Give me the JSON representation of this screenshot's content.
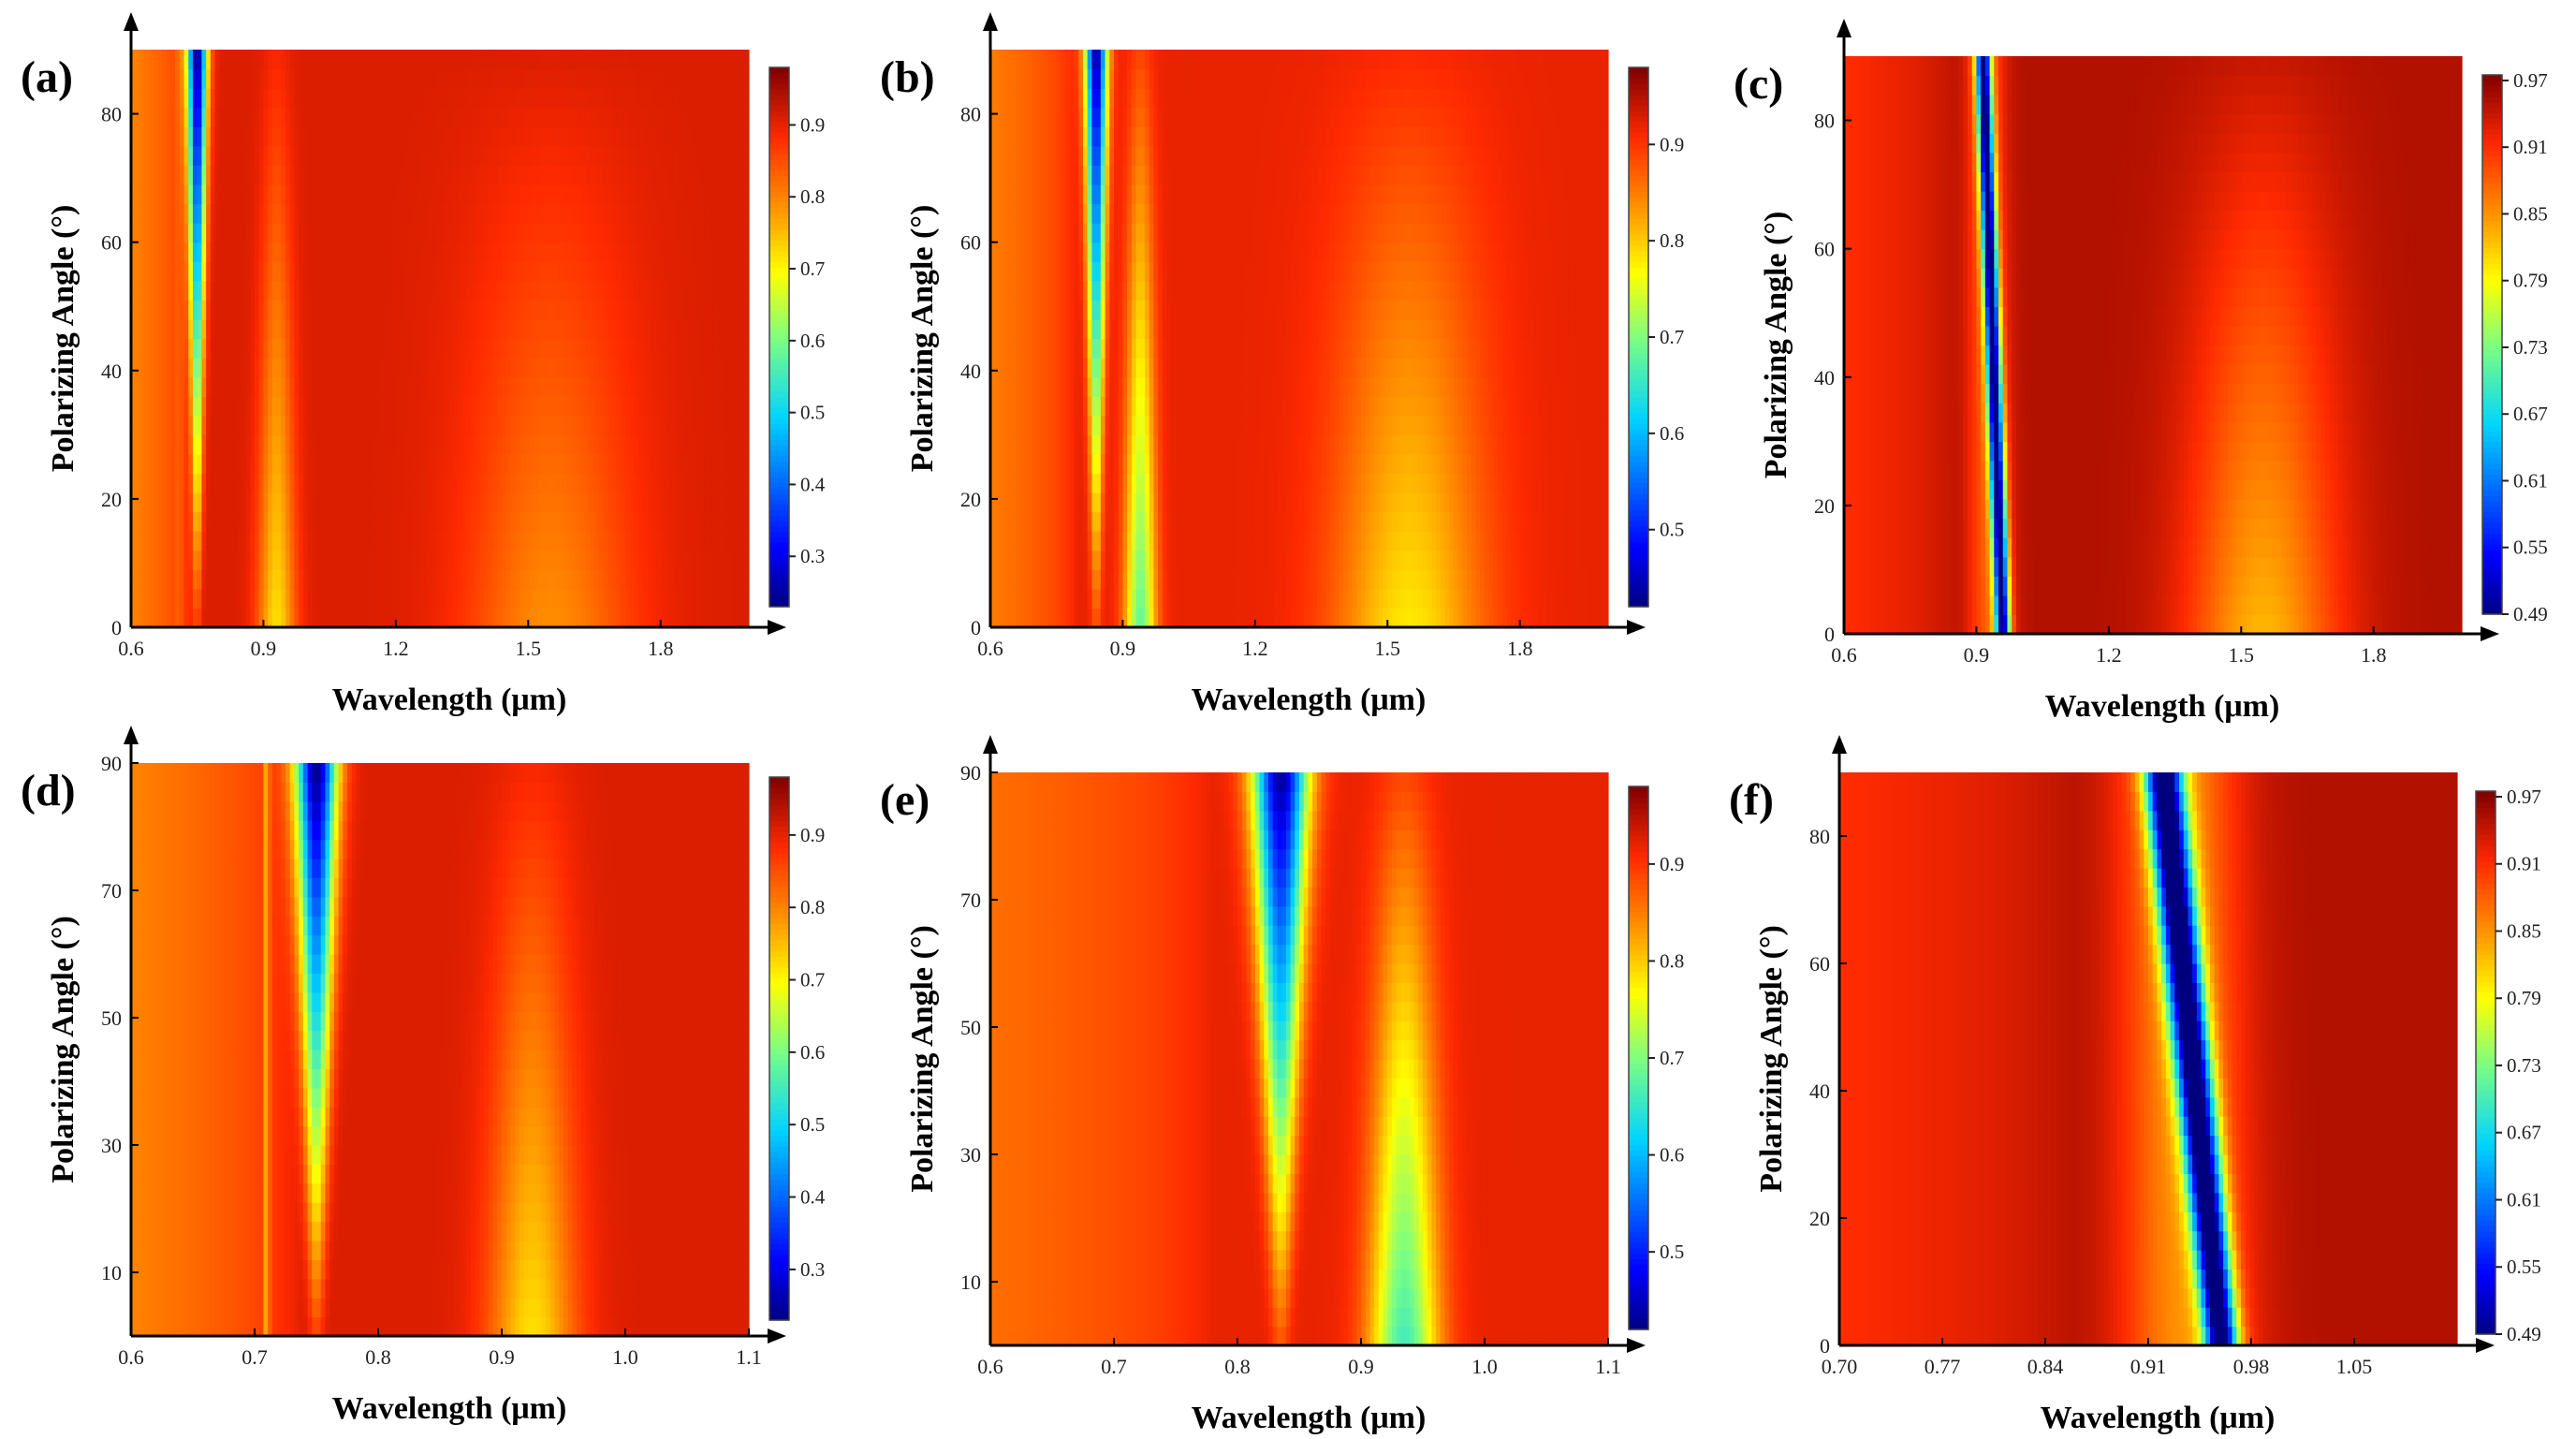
{
  "colors": {
    "colormap": [
      "#00007f",
      "#0000ff",
      "#00d4ff",
      "#7fff7f",
      "#ffff00",
      "#ff9400",
      "#ff2a00",
      "#7f0000"
    ],
    "axis": "#000000",
    "background": "#ffffff"
  },
  "chart_data": [
    {
      "type": "heatmap",
      "panel_label": "(a)",
      "xlabel": "Wavelength (μm)",
      "ylabel": "Polarizing Angle (°)",
      "xlim": [
        0.6,
        2.0
      ],
      "ylim": [
        0,
        90
      ],
      "xticks": [
        0.6,
        0.9,
        1.2,
        1.5,
        1.8
      ],
      "xtick_labels": [
        "0.6",
        "0.9",
        "1.2",
        "1.5",
        "1.8"
      ],
      "yticks": [
        0,
        20,
        40,
        60,
        80
      ],
      "ytick_labels": [
        "0",
        "20",
        "40",
        "60",
        "80"
      ],
      "colorbar_range": [
        0.23,
        0.98
      ],
      "colorbar_ticks": [
        0.3,
        0.4,
        0.5,
        0.6,
        0.7,
        0.8,
        0.9
      ],
      "colorbar_labels": [
        "0.3",
        "0.4",
        "0.5",
        "0.6",
        "0.7",
        "0.8",
        "0.9"
      ],
      "base_value": 0.91,
      "features": [
        {
          "kind": "lift",
          "wl_lo": 0.6,
          "wl_hi": 0.75,
          "amp": -0.11,
          "a0": -0.11,
          "a90": -0.11
        },
        {
          "kind": "dip",
          "wl0": 0.75,
          "wl90": 0.75,
          "w0": 0.006,
          "w90": 0.016,
          "a0": 0.05,
          "a90": 0.68
        },
        {
          "kind": "dip",
          "wl0": 0.93,
          "wl90": 0.93,
          "w0": 0.03,
          "w90": 0.022,
          "a0": 0.19,
          "a90": 0.02
        },
        {
          "kind": "dip",
          "wl0": 1.55,
          "wl90": 1.55,
          "w0": 0.13,
          "w90": 0.13,
          "a0": 0.12,
          "a90": 0.0
        },
        {
          "kind": "line",
          "wl0": 0.71,
          "w0": 0.0025,
          "amp": -0.12
        }
      ]
    },
    {
      "type": "heatmap",
      "panel_label": "(b)",
      "xlabel": "Wavelength (μm)",
      "ylabel": "Polarizing Angle (°)",
      "xlim": [
        0.6,
        2.0
      ],
      "ylim": [
        0,
        90
      ],
      "xticks": [
        0.6,
        0.9,
        1.2,
        1.5,
        1.8
      ],
      "xtick_labels": [
        "0.6",
        "0.9",
        "1.2",
        "1.5",
        "1.8"
      ],
      "yticks": [
        0,
        20,
        40,
        60,
        80
      ],
      "ytick_labels": [
        "0",
        "20",
        "40",
        "60",
        "80"
      ],
      "colorbar_range": [
        0.42,
        0.98
      ],
      "colorbar_ticks": [
        0.5,
        0.6,
        0.7,
        0.8,
        0.9
      ],
      "colorbar_labels": [
        "0.5",
        "0.6",
        "0.7",
        "0.8",
        "0.9"
      ],
      "base_value": 0.92,
      "features": [
        {
          "kind": "lift",
          "wl_lo": 0.6,
          "wl_hi": 0.8,
          "amp": -0.07,
          "a0": -0.07,
          "a90": -0.07
        },
        {
          "kind": "dip",
          "wl0": 0.84,
          "wl90": 0.84,
          "w0": 0.008,
          "w90": 0.018,
          "a0": 0.04,
          "a90": 0.49
        },
        {
          "kind": "dip",
          "wl0": 0.94,
          "wl90": 0.94,
          "w0": 0.025,
          "w90": 0.02,
          "a0": 0.24,
          "a90": 0.03
        },
        {
          "kind": "dip",
          "wl0": 1.55,
          "wl90": 1.55,
          "w0": 0.12,
          "w90": 0.12,
          "a0": 0.14,
          "a90": 0.01
        }
      ]
    },
    {
      "type": "heatmap",
      "panel_label": "(c)",
      "xlabel": "Wavelength (μm)",
      "ylabel": "Polarizing Angle (°)",
      "xlim": [
        0.6,
        2.0
      ],
      "ylim": [
        0,
        90
      ],
      "xticks": [
        0.6,
        0.9,
        1.2,
        1.5,
        1.8
      ],
      "xtick_labels": [
        "0.6",
        "0.9",
        "1.2",
        "1.5",
        "1.8"
      ],
      "yticks": [
        0,
        20,
        40,
        60,
        80
      ],
      "ytick_labels": [
        "0",
        "20",
        "40",
        "60",
        "80"
      ],
      "colorbar_range": [
        0.49,
        0.975
      ],
      "colorbar_ticks": [
        0.49,
        0.55,
        0.61,
        0.67,
        0.73,
        0.79,
        0.85,
        0.91,
        0.97
      ],
      "colorbar_labels": [
        "0.49",
        "0.55",
        "0.61",
        "0.67",
        "0.73",
        "0.79",
        "0.85",
        "0.91",
        "0.97"
      ],
      "base_value": 0.95,
      "features": [
        {
          "kind": "lift",
          "wl_lo": 0.6,
          "wl_hi": 0.86,
          "amp": -0.04,
          "a0": -0.04,
          "a90": -0.04
        },
        {
          "kind": "dip",
          "wl0": 0.96,
          "wl90": 0.915,
          "w0": 0.012,
          "w90": 0.012,
          "a0": 0.42,
          "a90": 0.42
        },
        {
          "kind": "dip",
          "wl0": 0.93,
          "wl90": 0.92,
          "w0": 0.035,
          "w90": 0.03,
          "a0": 0.07,
          "a90": 0.07
        },
        {
          "kind": "dip",
          "wl0": 1.55,
          "wl90": 1.55,
          "w0": 0.12,
          "w90": 0.12,
          "a0": 0.12,
          "a90": 0.01
        }
      ]
    },
    {
      "type": "heatmap",
      "panel_label": "(d)",
      "xlabel": "Wavelength (μm)",
      "ylabel": "Polarizing Angle (°)",
      "xlim": [
        0.6,
        1.1
      ],
      "ylim": [
        0,
        90
      ],
      "xticks": [
        0.6,
        0.7,
        0.8,
        0.9,
        1.0,
        1.1
      ],
      "xtick_labels": [
        "0.6",
        "0.7",
        "0.8",
        "0.9",
        "1.0",
        "1.1"
      ],
      "yticks": [
        10,
        30,
        50,
        70,
        90
      ],
      "ytick_labels": [
        "10",
        "30",
        "50",
        "70",
        "90"
      ],
      "colorbar_range": [
        0.23,
        0.98
      ],
      "colorbar_ticks": [
        0.3,
        0.4,
        0.5,
        0.6,
        0.7,
        0.8,
        0.9
      ],
      "colorbar_labels": [
        "0.3",
        "0.4",
        "0.5",
        "0.6",
        "0.7",
        "0.8",
        "0.9"
      ],
      "base_value": 0.91,
      "features": [
        {
          "kind": "lift",
          "wl_lo": 0.6,
          "wl_hi": 0.74,
          "amp": -0.11,
          "a0": -0.11,
          "a90": -0.11
        },
        {
          "kind": "dip",
          "wl0": 0.75,
          "wl90": 0.75,
          "w0": 0.004,
          "w90": 0.012,
          "a0": 0.05,
          "a90": 0.68
        },
        {
          "kind": "dip",
          "wl0": 0.925,
          "wl90": 0.925,
          "w0": 0.025,
          "w90": 0.022,
          "a0": 0.19,
          "a90": 0.02
        },
        {
          "kind": "line",
          "wl0": 0.71,
          "w0": 0.0015,
          "amp": -0.12
        }
      ]
    },
    {
      "type": "heatmap",
      "panel_label": "(e)",
      "xlabel": "Wavelength (μm)",
      "ylabel": "Polarizing Angle (°)",
      "xlim": [
        0.6,
        1.1
      ],
      "ylim": [
        0,
        90
      ],
      "xticks": [
        0.6,
        0.7,
        0.8,
        0.9,
        1.0,
        1.1
      ],
      "xtick_labels": [
        "0.6",
        "0.7",
        "0.8",
        "0.9",
        "1.0",
        "1.1"
      ],
      "yticks": [
        10,
        30,
        50,
        70,
        90
      ],
      "ytick_labels": [
        "10",
        "30",
        "50",
        "70",
        "90"
      ],
      "colorbar_range": [
        0.42,
        0.98
      ],
      "colorbar_ticks": [
        0.5,
        0.6,
        0.7,
        0.8,
        0.9
      ],
      "colorbar_labels": [
        "0.5",
        "0.6",
        "0.7",
        "0.8",
        "0.9"
      ],
      "base_value": 0.92,
      "features": [
        {
          "kind": "lift",
          "wl_lo": 0.6,
          "wl_hi": 0.78,
          "amp": -0.06,
          "a0": -0.06,
          "a90": -0.06
        },
        {
          "kind": "dip",
          "wl0": 0.835,
          "wl90": 0.835,
          "w0": 0.005,
          "w90": 0.016,
          "a0": 0.04,
          "a90": 0.49
        },
        {
          "kind": "dip",
          "wl0": 0.935,
          "wl90": 0.935,
          "w0": 0.02,
          "w90": 0.016,
          "a0": 0.26,
          "a90": 0.03
        }
      ]
    },
    {
      "type": "heatmap",
      "panel_label": "(f)",
      "xlabel": "Wavelength (μm)",
      "ylabel": "Polarizing Angle (°)",
      "xlim": [
        0.7,
        1.12
      ],
      "ylim": [
        0,
        90
      ],
      "xticks": [
        0.7,
        0.77,
        0.84,
        0.91,
        0.98,
        1.05
      ],
      "xtick_labels": [
        "0.70",
        "0.77",
        "0.84",
        "0.91",
        "0.98",
        "1.05"
      ],
      "yticks": [
        0,
        20,
        40,
        60,
        80
      ],
      "ytick_labels": [
        "0",
        "20",
        "40",
        "60",
        "80"
      ],
      "colorbar_range": [
        0.49,
        0.975
      ],
      "colorbar_ticks": [
        0.49,
        0.55,
        0.61,
        0.67,
        0.73,
        0.79,
        0.85,
        0.91,
        0.97
      ],
      "colorbar_labels": [
        "0.49",
        "0.55",
        "0.61",
        "0.67",
        "0.73",
        "0.79",
        "0.85",
        "0.91",
        "0.97"
      ],
      "base_value": 0.95,
      "features": [
        {
          "kind": "lift",
          "wl_lo": 0.7,
          "wl_hi": 0.86,
          "amp": -0.04,
          "a0": -0.04,
          "a90": -0.04
        },
        {
          "kind": "dip",
          "wl0": 0.96,
          "wl90": 0.92,
          "w0": 0.008,
          "w90": 0.009,
          "a0": 0.44,
          "a90": 0.44
        },
        {
          "kind": "dip",
          "wl0": 0.935,
          "wl90": 0.93,
          "w0": 0.03,
          "w90": 0.028,
          "a0": 0.1,
          "a90": 0.1
        }
      ]
    }
  ]
}
